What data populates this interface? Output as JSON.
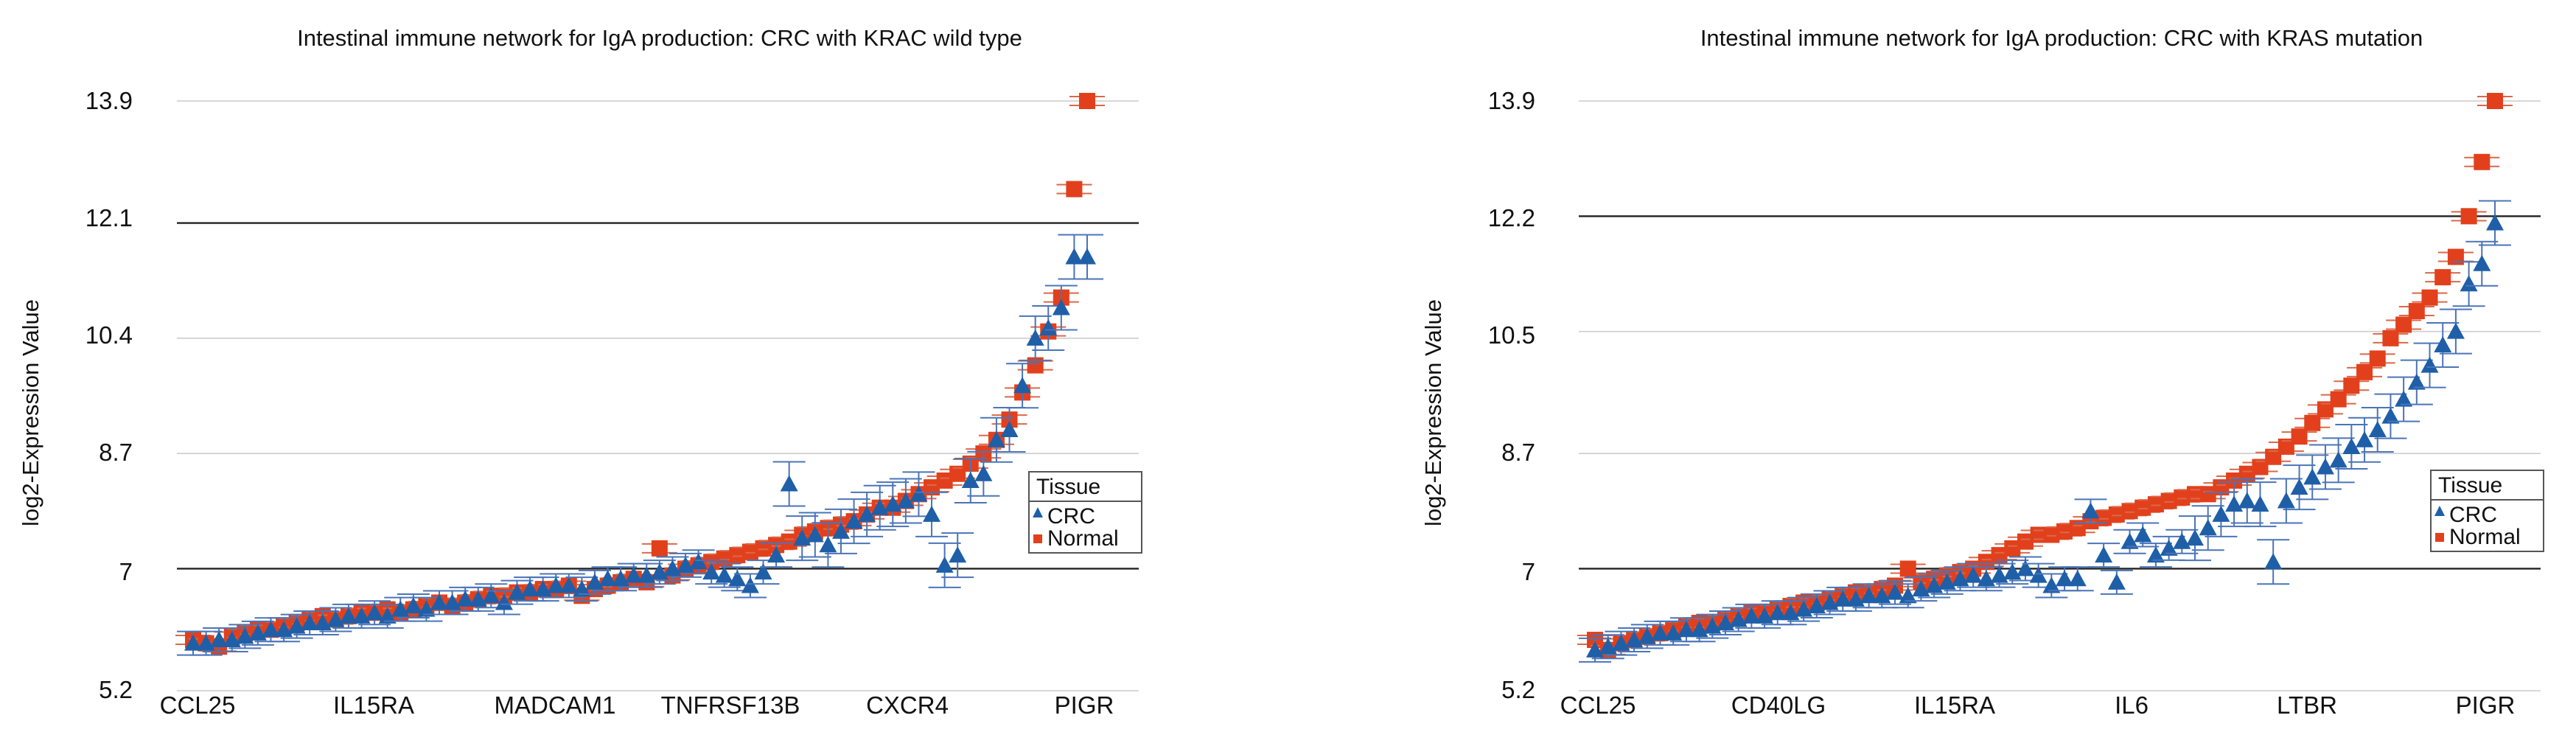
{
  "legend_title": "Tissue",
  "series_names": [
    "CRC",
    "Normal"
  ],
  "colors": {
    "CRC": "#1f5fa8",
    "Normal": "#e2401c",
    "normal_error": "#d86a4a",
    "crc_error": "#4a74b8",
    "grid": "#cccccc",
    "ref_line": "#222222"
  },
  "chart_data": [
    {
      "type": "scatter",
      "title": "Intestinal immune network for IgA production: CRC with KRAC wild type",
      "xlabel": "",
      "ylabel": "log2-Expression Value",
      "yticks": [
        "13.9",
        "12.1",
        "10.4",
        "8.7",
        "7",
        "5.2"
      ],
      "ylim": [
        5.2,
        13.9
      ],
      "reference_lines": [
        12.1,
        7
      ],
      "categories": [
        "CCL25",
        "IL15RA",
        "MADCAM1",
        "TNFRSF13B",
        "CXCR4",
        "PIGR"
      ],
      "legend_position": "right",
      "n_genes": 70,
      "normal_values": [
        5.95,
        5.9,
        5.85,
        6.0,
        6.05,
        6.1,
        6.1,
        6.15,
        6.2,
        6.25,
        6.3,
        6.25,
        6.3,
        6.35,
        6.35,
        6.4,
        6.35,
        6.4,
        6.45,
        6.5,
        6.45,
        6.5,
        6.55,
        6.6,
        6.6,
        6.65,
        6.65,
        6.7,
        6.7,
        6.75,
        6.6,
        6.7,
        6.75,
        6.8,
        6.85,
        6.8,
        7.3,
        6.9,
        7.0,
        7.05,
        7.1,
        7.15,
        7.2,
        7.25,
        7.3,
        7.35,
        7.4,
        7.5,
        7.55,
        7.6,
        7.65,
        7.7,
        7.8,
        7.9,
        7.9,
        8.0,
        8.1,
        8.2,
        8.3,
        8.4,
        8.55,
        8.7,
        8.9,
        9.2,
        9.6,
        10.0,
        10.5,
        11.0,
        12.6,
        13.9
      ],
      "crc_values": [
        5.9,
        5.9,
        5.95,
        5.95,
        6.0,
        6.05,
        6.1,
        6.1,
        6.15,
        6.2,
        6.2,
        6.25,
        6.3,
        6.3,
        6.35,
        6.3,
        6.4,
        6.45,
        6.4,
        6.5,
        6.5,
        6.55,
        6.55,
        6.6,
        6.5,
        6.65,
        6.7,
        6.7,
        6.75,
        6.75,
        6.7,
        6.8,
        6.85,
        6.85,
        6.9,
        6.9,
        6.95,
        7.0,
        7.05,
        7.1,
        6.95,
        6.9,
        6.85,
        6.75,
        6.95,
        7.2,
        8.25,
        7.45,
        7.5,
        7.35,
        7.55,
        7.7,
        7.8,
        7.9,
        7.95,
        8.0,
        8.1,
        7.8,
        7.05,
        7.2,
        8.3,
        8.4,
        8.9,
        9.05,
        9.7,
        10.4,
        10.55,
        10.85,
        11.6,
        11.6
      ],
      "normal_err": 0.07,
      "crc_err": 0.09
    },
    {
      "type": "scatter",
      "title": "Intestinal immune network for IgA production: CRC with KRAS mutation",
      "xlabel": "",
      "ylabel": "log2-Expression Value",
      "yticks": [
        "13.9",
        "12.2",
        "10.5",
        "8.7",
        "7",
        "5.2"
      ],
      "ylim": [
        5.2,
        13.9
      ],
      "reference_lines": [
        12.2,
        7
      ],
      "categories": [
        "CCL25",
        "CD40LG",
        "IL15RA",
        "IL6",
        "LTBR",
        "PIGR"
      ],
      "legend_position": "right",
      "n_genes": 70,
      "normal_values": [
        5.95,
        5.8,
        5.9,
        5.95,
        6.0,
        6.05,
        6.1,
        6.15,
        6.2,
        6.2,
        6.25,
        6.3,
        6.35,
        6.35,
        6.4,
        6.45,
        6.5,
        6.5,
        6.55,
        6.6,
        6.65,
        6.65,
        6.7,
        6.75,
        7.0,
        6.8,
        6.85,
        6.9,
        6.95,
        7.0,
        7.1,
        7.2,
        7.3,
        7.4,
        7.5,
        7.5,
        7.55,
        7.6,
        7.7,
        7.75,
        7.8,
        7.85,
        7.9,
        7.95,
        8.0,
        8.05,
        8.1,
        8.1,
        8.2,
        8.3,
        8.4,
        8.5,
        8.65,
        8.8,
        8.95,
        9.15,
        9.35,
        9.5,
        9.7,
        9.9,
        10.1,
        10.4,
        10.6,
        10.8,
        11.0,
        11.3,
        11.6,
        12.2,
        13.0,
        13.9
      ],
      "crc_values": [
        5.8,
        5.85,
        5.9,
        5.95,
        6.0,
        6.05,
        6.05,
        6.1,
        6.1,
        6.15,
        6.2,
        6.25,
        6.3,
        6.3,
        6.35,
        6.35,
        6.4,
        6.45,
        6.5,
        6.55,
        6.55,
        6.6,
        6.6,
        6.65,
        6.6,
        6.7,
        6.75,
        6.8,
        6.85,
        6.9,
        6.85,
        6.9,
        6.95,
        7.0,
        6.9,
        6.75,
        6.85,
        6.85,
        7.85,
        7.2,
        6.8,
        7.4,
        7.5,
        7.2,
        7.3,
        7.4,
        7.45,
        7.6,
        7.8,
        7.95,
        8.0,
        7.95,
        7.1,
        8.0,
        8.2,
        8.35,
        8.5,
        8.6,
        8.8,
        8.9,
        9.05,
        9.25,
        9.5,
        9.75,
        10.0,
        10.3,
        10.5,
        11.2,
        11.5,
        12.1
      ]
    }
  ]
}
